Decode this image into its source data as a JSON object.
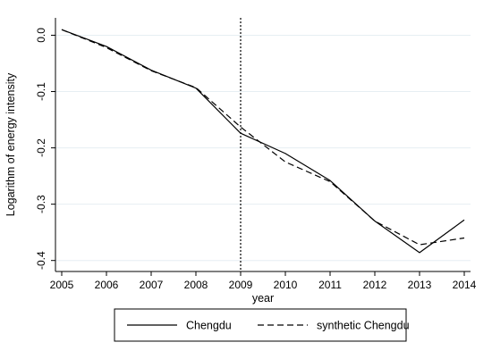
{
  "chart_data": {
    "type": "line",
    "title": "",
    "xlabel": "year",
    "ylabel": "Logarithm of energy intensity",
    "x": [
      2005,
      2006,
      2007,
      2008,
      2009,
      2010,
      2011,
      2012,
      2013,
      2014
    ],
    "x_ticks": [
      "2005",
      "2006",
      "2007",
      "2008",
      "2009",
      "2010",
      "2011",
      "2012",
      "2013",
      "2014"
    ],
    "y_ticks": [
      0.0,
      -0.1,
      -0.2,
      -0.3,
      -0.4
    ],
    "y_tick_labels": [
      "0.0",
      "-0.1",
      "-0.2",
      "-0.3",
      "-0.4"
    ],
    "xlim": [
      2005,
      2014
    ],
    "ylim": [
      -0.41,
      0.015
    ],
    "grid": "horizontal",
    "reference_line": {
      "x": 2009,
      "style": "dotted"
    },
    "series": [
      {
        "name": "Chengdu",
        "style": "solid",
        "values": [
          0.01,
          -0.02,
          -0.062,
          -0.094,
          -0.174,
          -0.21,
          -0.258,
          -0.33,
          -0.386,
          -0.328
        ]
      },
      {
        "name": "synthetic Chengdu",
        "style": "dashed",
        "values": [
          0.01,
          -0.022,
          -0.063,
          -0.093,
          -0.163,
          -0.225,
          -0.26,
          -0.33,
          -0.372,
          -0.36
        ]
      }
    ],
    "legend": {
      "placement": "bottom",
      "entries": [
        "Chengdu",
        "synthetic Chengdu"
      ]
    }
  },
  "colors": {
    "background": "#ffffff",
    "line": "#000000",
    "grid": "#e6eef3",
    "axis": "#000000"
  }
}
